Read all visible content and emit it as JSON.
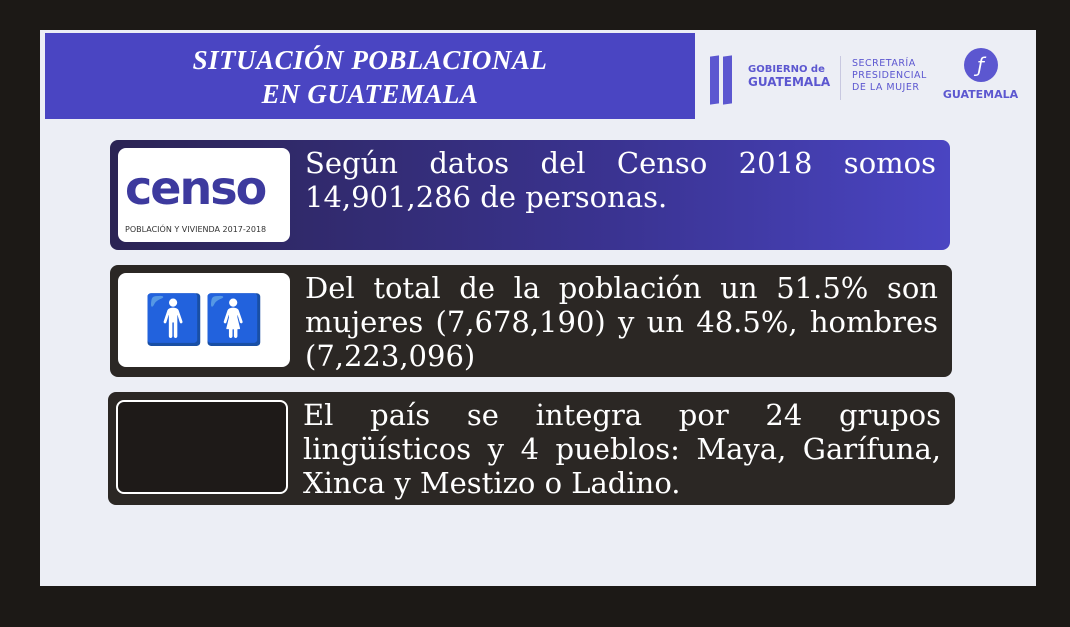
{
  "title": {
    "line1": "SITUACIÓN POBLACIONAL",
    "line2": "EN GUATEMALA"
  },
  "logos": {
    "gobierno_line1": "GOBIERNO de",
    "gobierno_line2": "GUATEMALA",
    "secretaria": [
      "SECRETARÍA",
      "PRESIDENCIAL",
      "DE LA MUJER"
    ],
    "municipalidad": "GUATEMALA"
  },
  "censo_logo": {
    "word": "censo",
    "subtitle": "POBLACIÓN Y VIVIENDA 2017-2018"
  },
  "items": [
    {
      "text": "Según datos del Censo 2018 somos 14,901,286 de personas.",
      "icon": "censo-logo"
    },
    {
      "text": "Del total de la población un 51.5% son mujeres (7,678,190) y un 48.5%, hombres (7,223,096)",
      "icon": "man-woman-icon"
    },
    {
      "text": "El país se integra por 24 grupos lingüísticos y 4 pueblos: Maya, Garífuna, Xinca  y Mestizo o Ladino.",
      "icon": "dance-photo"
    }
  ],
  "colors": {
    "banner": "#4a45c2",
    "box_dark": "#2b2724",
    "slide_bg": "#eceef5"
  }
}
